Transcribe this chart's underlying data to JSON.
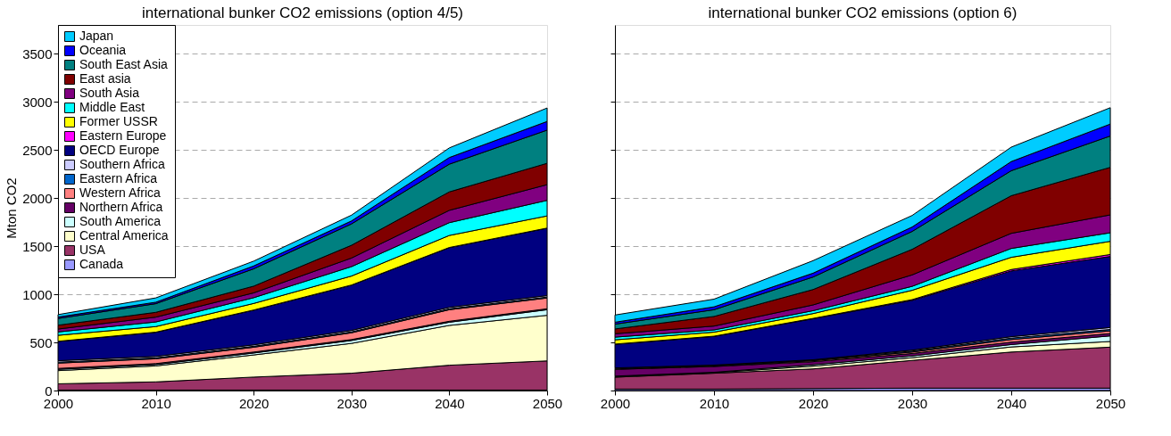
{
  "chart_data": [
    {
      "type": "area",
      "stacked": true,
      "title": "international bunker CO2 emissions (option 4/5)",
      "ylabel": "Mton CO2",
      "x": [
        2000,
        2010,
        2020,
        2030,
        2040,
        2050
      ],
      "xlim": [
        2000,
        2050
      ],
      "xticks": [
        2000,
        2010,
        2020,
        2030,
        2040,
        2050
      ],
      "ylim": [
        0,
        3800
      ],
      "yticks": [
        0,
        500,
        1000,
        1500,
        2000,
        2500,
        3000,
        3500
      ],
      "grid": "y",
      "legend": "top left",
      "series": [
        {
          "name": "Canada",
          "color": "#9999ff",
          "values": [
            5,
            5,
            5,
            5,
            5,
            5
          ]
        },
        {
          "name": "USA",
          "color": "#993366",
          "values": [
            65,
            85,
            135,
            175,
            258,
            303
          ]
        },
        {
          "name": "Central America",
          "color": "#ffffcc",
          "values": [
            137,
            166,
            230,
            310,
            414,
            474
          ]
        },
        {
          "name": "South America",
          "color": "#ccffff",
          "values": [
            13,
            14,
            20,
            30,
            33,
            58
          ]
        },
        {
          "name": "Northern Africa",
          "color": "#660066",
          "values": [
            10,
            10,
            10,
            10,
            10,
            10
          ]
        },
        {
          "name": "Western Africa",
          "color": "#ff8080",
          "values": [
            55,
            50,
            50,
            70,
            120,
            112
          ]
        },
        {
          "name": "Eastern Africa",
          "color": "#0066cc",
          "values": [
            10,
            10,
            10,
            10,
            10,
            10
          ]
        },
        {
          "name": "Southern Africa",
          "color": "#ccccff",
          "values": [
            15,
            15,
            15,
            15,
            15,
            15
          ]
        },
        {
          "name": "OECD Europe",
          "color": "#000080",
          "values": [
            200,
            250,
            360,
            470,
            620,
            700
          ]
        },
        {
          "name": "Eastern Europe",
          "color": "#ff00ff",
          "values": [
            2,
            2,
            2,
            2,
            2,
            2
          ]
        },
        {
          "name": "Former USSR",
          "color": "#ffff00",
          "values": [
            62,
            58,
            68,
            93,
            125,
            126
          ]
        },
        {
          "name": "Middle East",
          "color": "#00ffff",
          "values": [
            35,
            48,
            60,
            98,
            133,
            162
          ]
        },
        {
          "name": "South Asia",
          "color": "#800080",
          "values": [
            30,
            50,
            50,
            89,
            128,
            163
          ]
        },
        {
          "name": "East asia",
          "color": "#800000",
          "values": [
            40,
            50,
            70,
            133,
            192,
            222
          ]
        },
        {
          "name": "South East Asia",
          "color": "#008080",
          "values": [
            70,
            90,
            180,
            222,
            288,
            345
          ]
        },
        {
          "name": "Oceania",
          "color": "#0000ff",
          "values": [
            15,
            15,
            30,
            31,
            69,
            90
          ]
        },
        {
          "name": "Japan",
          "color": "#00ccff",
          "values": [
            25,
            45,
            50,
            60,
            100,
            140
          ]
        }
      ]
    },
    {
      "type": "area",
      "stacked": true,
      "title": "international bunker CO2 emissions (option 6)",
      "x": [
        2000,
        2010,
        2020,
        2030,
        2040,
        2050
      ],
      "xlim": [
        2000,
        2050
      ],
      "xticks": [
        2000,
        2010,
        2020,
        2030,
        2040,
        2050
      ],
      "ylim": [
        0,
        3800
      ],
      "yticks": [
        0,
        500,
        1000,
        1500,
        2000,
        2500,
        3000,
        3500
      ],
      "tick_labels": "x",
      "grid": "y",
      "series": [
        {
          "color": "#9999ff",
          "values": [
            15,
            15,
            20,
            25,
            25,
            25
          ]
        },
        {
          "color": "#993366",
          "values": [
            124,
            165,
            205,
            288,
            375,
            426
          ]
        },
        {
          "color": "#ffffcc",
          "values": [
            6,
            5,
            28,
            28,
            53,
            59
          ]
        },
        {
          "color": "#ccffff",
          "values": [
            5,
            5,
            15,
            19,
            25,
            58
          ]
        },
        {
          "color": "#660066",
          "values": [
            70,
            60,
            32,
            25,
            25,
            25
          ]
        },
        {
          "color": "#ff8080",
          "values": [
            5,
            5,
            10,
            15,
            27,
            27
          ]
        },
        {
          "color": "#0066cc",
          "values": [
            5,
            5,
            5,
            10,
            15,
            15
          ]
        },
        {
          "color": "#ccccff",
          "values": [
            5,
            5,
            5,
            10,
            15,
            20
          ]
        },
        {
          "color": "#000080",
          "values": [
            245,
            297,
            426,
            517,
            683,
            739
          ]
        },
        {
          "color": "#ff00ff",
          "values": [
            3,
            3,
            4,
            8,
            15,
            20
          ]
        },
        {
          "color": "#ffff00",
          "values": [
            44,
            42,
            50,
            97,
            127,
            137
          ]
        },
        {
          "color": "#00ffff",
          "values": [
            28,
            23,
            30,
            41,
            92,
            89
          ]
        },
        {
          "color": "#800080",
          "values": [
            35,
            40,
            60,
            119,
            157,
            186
          ]
        },
        {
          "color": "#800000",
          "values": [
            50,
            100,
            160,
            266,
            391,
            494
          ]
        },
        {
          "color": "#008080",
          "values": [
            50,
            70,
            130,
            186,
            260,
            326
          ]
        },
        {
          "color": "#0000ff",
          "values": [
            20,
            30,
            40,
            46,
            95,
            124
          ]
        },
        {
          "color": "#00ccff",
          "values": [
            75,
            80,
            130,
            120,
            150,
            170
          ]
        }
      ]
    }
  ]
}
